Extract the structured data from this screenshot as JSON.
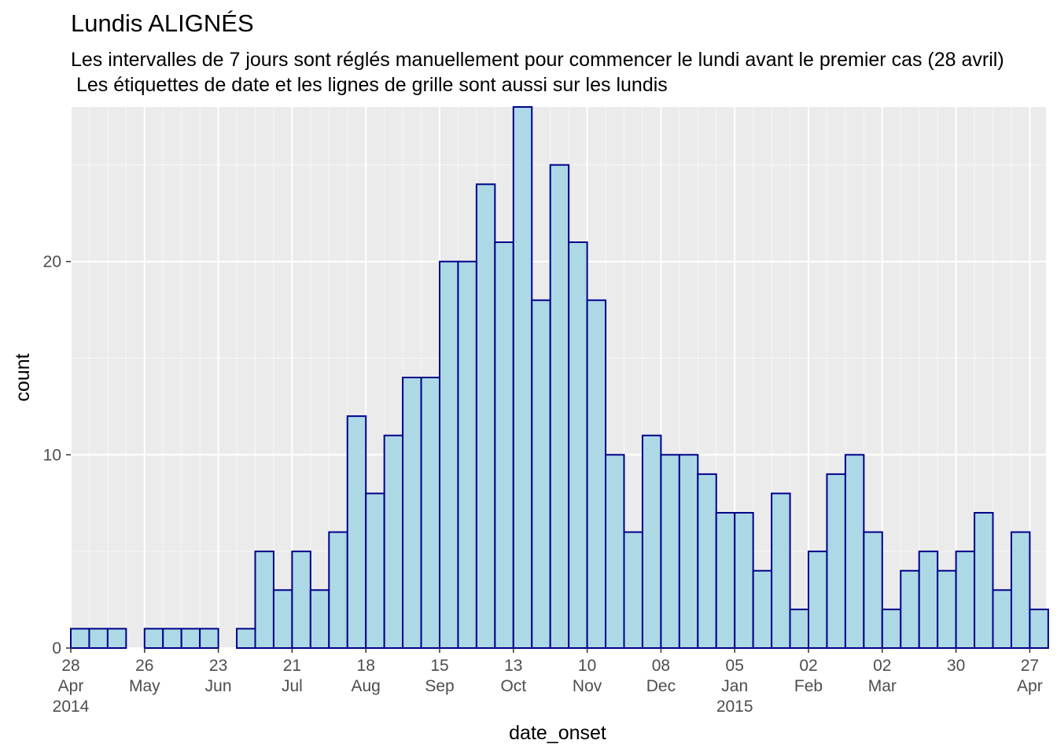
{
  "chart_data": {
    "type": "bar",
    "title": "Lundis ALIGNÉS",
    "subtitle": [
      "Les intervalles de 7 jours sont réglés manuellement pour commencer le lundi avant le premier cas (28 avril)",
      " Les étiquettes de date et les lignes de grille sont aussi sur les lundis"
    ],
    "xlabel": "date_onset",
    "ylabel": "count",
    "ylim": [
      0,
      28
    ],
    "y_ticks": [
      0,
      10,
      20
    ],
    "x_start": "2014-04-28",
    "bin_width_days": 7,
    "values": [
      1,
      1,
      1,
      0,
      1,
      1,
      1,
      1,
      0,
      1,
      5,
      3,
      5,
      3,
      6,
      12,
      8,
      11,
      14,
      14,
      20,
      20,
      24,
      21,
      28,
      18,
      25,
      21,
      18,
      10,
      6,
      11,
      10,
      10,
      9,
      7,
      7,
      4,
      8,
      2,
      5,
      9,
      10,
      6,
      2,
      4,
      5,
      4,
      5,
      7,
      3,
      6,
      2
    ],
    "x_ticks": [
      {
        "date": "2014-04-28",
        "day": "28",
        "month": "Apr",
        "year": "2014"
      },
      {
        "date": "2014-05-26",
        "day": "26",
        "month": "May",
        "year": ""
      },
      {
        "date": "2014-06-23",
        "day": "23",
        "month": "Jun",
        "year": ""
      },
      {
        "date": "2014-07-21",
        "day": "21",
        "month": "Jul",
        "year": ""
      },
      {
        "date": "2014-08-18",
        "day": "18",
        "month": "Aug",
        "year": ""
      },
      {
        "date": "2014-09-15",
        "day": "15",
        "month": "Sep",
        "year": ""
      },
      {
        "date": "2014-10-13",
        "day": "13",
        "month": "Oct",
        "year": ""
      },
      {
        "date": "2014-11-10",
        "day": "10",
        "month": "Nov",
        "year": ""
      },
      {
        "date": "2014-12-08",
        "day": "08",
        "month": "Dec",
        "year": ""
      },
      {
        "date": "2015-01-05",
        "day": "05",
        "month": "Jan",
        "year": "2015"
      },
      {
        "date": "2015-02-02",
        "day": "02",
        "month": "Feb",
        "year": ""
      },
      {
        "date": "2015-03-02",
        "day": "02",
        "month": "Mar",
        "year": ""
      },
      {
        "date": "2015-03-30",
        "day": "30",
        "month": "",
        "year": ""
      },
      {
        "date": "2015-04-27",
        "day": "27",
        "month": "Apr",
        "year": ""
      }
    ],
    "grid": true,
    "legend": "none",
    "colors": {
      "bar_fill": "#add8e6",
      "bar_stroke": "#00008b",
      "panel_bg": "#ebebeb",
      "grid_major": "#ffffff",
      "tick_text": "#4d4d4d"
    }
  }
}
